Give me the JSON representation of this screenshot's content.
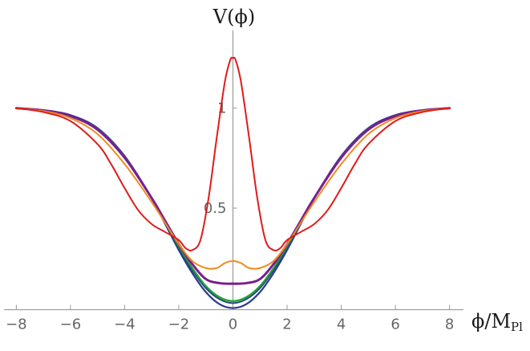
{
  "chart_data": {
    "type": "line",
    "xlabel": "ϕ/M",
    "xlabel_sub": "Pl",
    "ylabel": "V(ϕ)",
    "xlim": [
      -8.1,
      8.1
    ],
    "ylim": [
      -0.05,
      1.38
    ],
    "x_ticks": [
      -8,
      -6,
      -4,
      -2,
      0,
      2,
      4,
      6,
      8
    ],
    "x_tick_labels": [
      "−8",
      "−6",
      "−4",
      "−2",
      "0",
      "2",
      "4",
      "6",
      "8"
    ],
    "y_ticks": [
      0.5,
      1
    ],
    "y_tick_labels": [
      "0.5",
      "1"
    ],
    "grid": false,
    "legend": "none",
    "series": [
      {
        "color": "#2b3a8f",
        "stroke_width": 2.2,
        "points": [
          [
            -8,
            1.0
          ],
          [
            -7,
            0.99
          ],
          [
            -6,
            0.965
          ],
          [
            -5,
            0.9
          ],
          [
            -4,
            0.76
          ],
          [
            -3,
            0.55
          ],
          [
            -2.5,
            0.42
          ],
          [
            -2,
            0.29
          ],
          [
            -1.5,
            0.175
          ],
          [
            -1,
            0.08
          ],
          [
            -0.5,
            0.02
          ],
          [
            0,
            0.0
          ],
          [
            0.5,
            0.02
          ],
          [
            1,
            0.08
          ],
          [
            1.5,
            0.175
          ],
          [
            2,
            0.29
          ],
          [
            2.5,
            0.42
          ],
          [
            3,
            0.55
          ],
          [
            4,
            0.76
          ],
          [
            5,
            0.9
          ],
          [
            6,
            0.965
          ],
          [
            7,
            0.99
          ],
          [
            8,
            1.0
          ]
        ]
      },
      {
        "color": "#1f4a7a",
        "stroke_width": 2,
        "points": [
          [
            -8,
            1.0
          ],
          [
            -7,
            0.988
          ],
          [
            -6,
            0.962
          ],
          [
            -5,
            0.895
          ],
          [
            -4,
            0.755
          ],
          [
            -3,
            0.55
          ],
          [
            -2.5,
            0.425
          ],
          [
            -2,
            0.3
          ],
          [
            -1.5,
            0.19
          ],
          [
            -1,
            0.1
          ],
          [
            -0.5,
            0.045
          ],
          [
            0,
            0.025
          ],
          [
            0.5,
            0.045
          ],
          [
            1,
            0.1
          ],
          [
            1.5,
            0.19
          ],
          [
            2,
            0.3
          ],
          [
            2.5,
            0.425
          ],
          [
            3,
            0.55
          ],
          [
            4,
            0.755
          ],
          [
            5,
            0.895
          ],
          [
            6,
            0.962
          ],
          [
            7,
            0.988
          ],
          [
            8,
            1.0
          ]
        ]
      },
      {
        "color": "#22a033",
        "stroke_width": 2.2,
        "points": [
          [
            -8,
            1.0
          ],
          [
            -7,
            0.988
          ],
          [
            -6,
            0.96
          ],
          [
            -5,
            0.895
          ],
          [
            -4,
            0.755
          ],
          [
            -3,
            0.55
          ],
          [
            -2.5,
            0.43
          ],
          [
            -2,
            0.31
          ],
          [
            -1.5,
            0.2
          ],
          [
            -1,
            0.11
          ],
          [
            -0.5,
            0.055
          ],
          [
            0,
            0.035
          ],
          [
            0.5,
            0.055
          ],
          [
            1,
            0.11
          ],
          [
            1.5,
            0.2
          ],
          [
            2,
            0.31
          ],
          [
            2.5,
            0.43
          ],
          [
            3,
            0.55
          ],
          [
            4,
            0.755
          ],
          [
            5,
            0.895
          ],
          [
            6,
            0.96
          ],
          [
            7,
            0.988
          ],
          [
            8,
            1.0
          ]
        ]
      },
      {
        "color": "#7b1f8f",
        "stroke_width": 3,
        "points": [
          [
            -8,
            1.0
          ],
          [
            -7,
            0.988
          ],
          [
            -6,
            0.96
          ],
          [
            -5,
            0.892
          ],
          [
            -4,
            0.752
          ],
          [
            -3,
            0.55
          ],
          [
            -2.5,
            0.435
          ],
          [
            -2,
            0.32
          ],
          [
            -1.5,
            0.22
          ],
          [
            -1,
            0.145
          ],
          [
            -0.5,
            0.125
          ],
          [
            0,
            0.122
          ],
          [
            0.5,
            0.125
          ],
          [
            1,
            0.145
          ],
          [
            1.5,
            0.22
          ],
          [
            2,
            0.32
          ],
          [
            2.5,
            0.435
          ],
          [
            3,
            0.55
          ],
          [
            4,
            0.752
          ],
          [
            5,
            0.892
          ],
          [
            6,
            0.96
          ],
          [
            7,
            0.988
          ],
          [
            8,
            1.0
          ]
        ]
      },
      {
        "color": "#f08c1e",
        "stroke_width": 2,
        "points": [
          [
            -8,
            1.0
          ],
          [
            -7,
            0.985
          ],
          [
            -6,
            0.95
          ],
          [
            -5,
            0.87
          ],
          [
            -4,
            0.72
          ],
          [
            -3,
            0.53
          ],
          [
            -2.5,
            0.425
          ],
          [
            -2,
            0.32
          ],
          [
            -1.5,
            0.235
          ],
          [
            -1,
            0.2
          ],
          [
            -0.6,
            0.2
          ],
          [
            -0.3,
            0.225
          ],
          [
            0,
            0.235
          ],
          [
            0.3,
            0.225
          ],
          [
            0.6,
            0.2
          ],
          [
            1,
            0.2
          ],
          [
            1.5,
            0.235
          ],
          [
            2,
            0.32
          ],
          [
            2.5,
            0.425
          ],
          [
            3,
            0.53
          ],
          [
            4,
            0.72
          ],
          [
            5,
            0.87
          ],
          [
            6,
            0.95
          ],
          [
            7,
            0.985
          ],
          [
            8,
            1.0
          ]
        ]
      },
      {
        "color": "#e01b1b",
        "stroke_width": 2,
        "points": [
          [
            -8,
            1.0
          ],
          [
            -7,
            0.98
          ],
          [
            -6,
            0.935
          ],
          [
            -5,
            0.82
          ],
          [
            -4.5,
            0.72
          ],
          [
            -4,
            0.6
          ],
          [
            -3.5,
            0.49
          ],
          [
            -3,
            0.42
          ],
          [
            -2.5,
            0.38
          ],
          [
            -2,
            0.34
          ],
          [
            -1.75,
            0.3
          ],
          [
            -1.5,
            0.29
          ],
          [
            -1.2,
            0.34
          ],
          [
            -0.9,
            0.55
          ],
          [
            -0.6,
            0.85
          ],
          [
            -0.3,
            1.13
          ],
          [
            -0.1,
            1.24
          ],
          [
            0,
            1.25
          ],
          [
            0.1,
            1.24
          ],
          [
            0.3,
            1.13
          ],
          [
            0.6,
            0.85
          ],
          [
            0.9,
            0.55
          ],
          [
            1.2,
            0.34
          ],
          [
            1.5,
            0.29
          ],
          [
            1.75,
            0.3
          ],
          [
            2,
            0.34
          ],
          [
            2.5,
            0.38
          ],
          [
            3,
            0.42
          ],
          [
            3.5,
            0.49
          ],
          [
            4,
            0.6
          ],
          [
            4.5,
            0.72
          ],
          [
            5,
            0.82
          ],
          [
            6,
            0.935
          ],
          [
            7,
            0.98
          ],
          [
            8,
            1.0
          ]
        ]
      }
    ]
  }
}
